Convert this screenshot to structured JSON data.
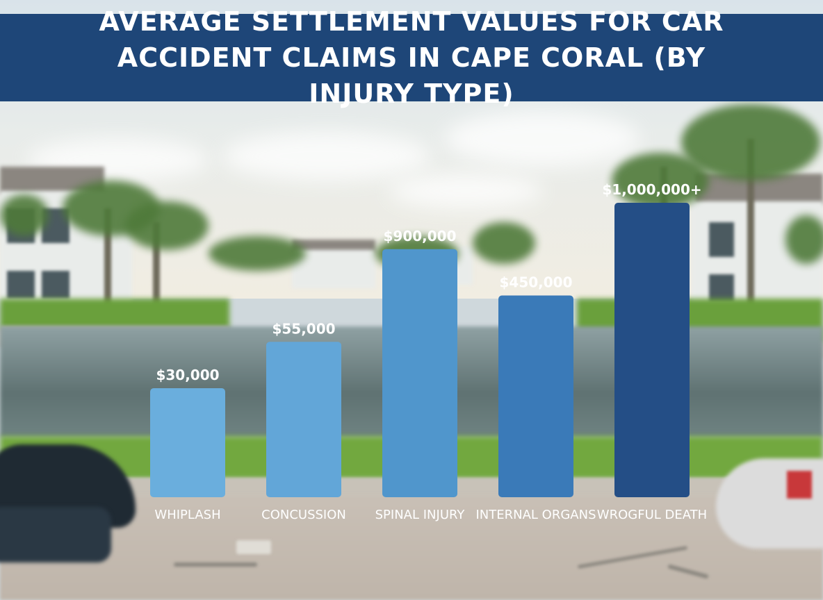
{
  "chart_data": {
    "type": "bar",
    "title": "AVERAGE SETTLEMENT VALUES FOR CAR ACCIDENT CLAIMS IN CAPE CORAL (BY INJURY TYPE)",
    "xlabel": "",
    "ylabel": "",
    "categories": [
      "WHIPLASH",
      "CONCUSSION",
      "SPINAL INJURY",
      "INTERNAL ORGANS",
      "WROGFUL DEATH"
    ],
    "values": [
      30000,
      55000,
      900000,
      450000,
      1000000
    ],
    "value_labels": [
      "$30,000",
      "$55,000",
      "$900,000",
      "$450,000",
      "$1,000,000+"
    ],
    "bar_colors": [
      "#6aaedd",
      "#62a6d8",
      "#5096cc",
      "#3a7ab8",
      "#244e86"
    ],
    "grid": false,
    "legend": "none"
  }
}
